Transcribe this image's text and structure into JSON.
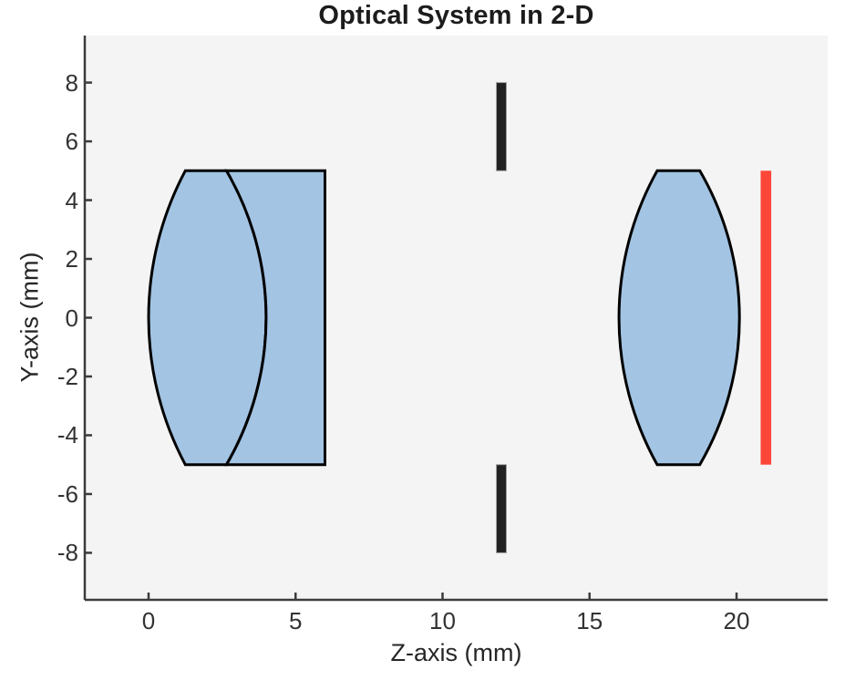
{
  "figure": {
    "background": "#ffffff"
  },
  "chart_data": {
    "type": "diagram",
    "title": "Optical System in 2-D",
    "xlabel": "Z-axis (mm)",
    "ylabel": "Y-axis (mm)",
    "xlim": [
      -2.17,
      23.1
    ],
    "ylim": [
      -9.6,
      9.6
    ],
    "xticks": [
      0,
      5,
      10,
      15,
      20
    ],
    "yticks": [
      8,
      6,
      4,
      2,
      0,
      -2,
      -4,
      -6,
      -8
    ],
    "grid": false,
    "legend": false,
    "units": "mm",
    "lenses": [
      {
        "name": "doublet-lens-element-1",
        "half_aperture": 5,
        "surfaces": [
          {
            "vertex_z": 0.0,
            "edge_z": 1.25
          },
          {
            "vertex_z": 4.0,
            "edge_z": 2.65
          }
        ]
      },
      {
        "name": "doublet-lens-element-2",
        "half_aperture": 5,
        "surfaces": [
          {
            "vertex_z": 4.0,
            "edge_z": 2.65
          },
          {
            "vertex_z": 6.0,
            "edge_z": 6.0
          }
        ]
      },
      {
        "name": "biconvex-singlet-lens",
        "half_aperture": 5,
        "surfaces": [
          {
            "vertex_z": 16.0,
            "edge_z": 17.3
          },
          {
            "vertex_z": 20.1,
            "edge_z": 18.75
          }
        ]
      }
    ],
    "aperture_stop": {
      "z": 12,
      "inner_half_height": 5,
      "outer_half_height": 8,
      "width_mm": 0.34,
      "color": "#212121",
      "edge_color": "#9e9e9e"
    },
    "image_plane": {
      "z": 21,
      "half_height": 5,
      "width_mm": 0.36,
      "color": "#fb4638"
    },
    "styles": {
      "plot_background": "#f4f4f4",
      "lens_fill": "#a3c4e3",
      "lens_stroke": "#000000",
      "lens_stroke_width": 3,
      "axis_color": "#3c3c3c",
      "tick_label_color": "#333333",
      "text_color": "#262626"
    }
  }
}
